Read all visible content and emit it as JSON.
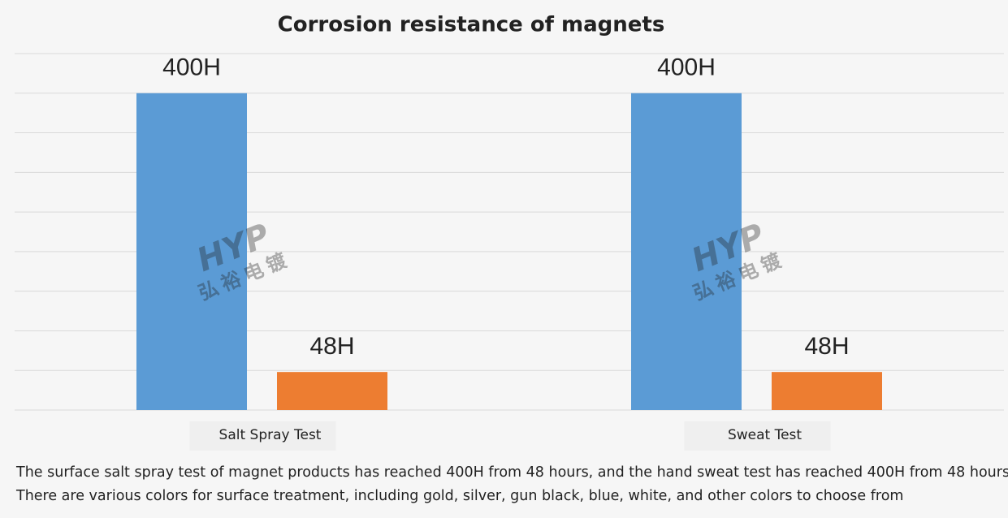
{
  "chart_data": {
    "type": "bar",
    "title": "Corrosion resistance of magnets",
    "categories": [
      "Salt Spray Test",
      "Sweat Test"
    ],
    "series": [
      {
        "color": "#5b9bd5",
        "values": [
          400,
          400
        ],
        "value_labels": [
          "400H",
          "400H"
        ]
      },
      {
        "color": "#ed7d31",
        "values": [
          48,
          48
        ],
        "value_labels": [
          "48H",
          "48H"
        ]
      }
    ],
    "ylim": [
      0,
      450
    ],
    "yticks": [
      0,
      50,
      100,
      150,
      200,
      250,
      300,
      350,
      400,
      450
    ],
    "grid": true,
    "watermark": {
      "logo": "HYP",
      "text": "弘裕电镀"
    },
    "caption": [
      "The surface salt spray test of magnet products has reached 400H from 48 hours, and the hand sweat test has reached 400H from 48 hours,",
      "There are various colors for surface treatment, including gold, silver, gun black, blue, white, and other colors to choose from"
    ]
  }
}
